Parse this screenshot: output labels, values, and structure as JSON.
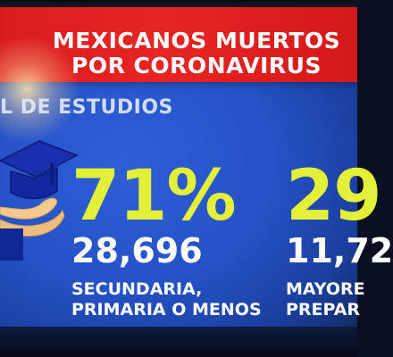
{
  "banner": {
    "line1": "MEXICANOS MUERTOS",
    "line2": "POR CORONAVIRUS",
    "color": "#e32020"
  },
  "section": {
    "label": "L DE ESTUDIOS"
  },
  "icons": {
    "education": "graduation-cap-on-hand-icon"
  },
  "stats": [
    {
      "percent": "71%",
      "count": "28,696",
      "desc_line1": "SECUNDARIA,",
      "desc_line2": "PRIMARIA O MENOS"
    },
    {
      "percent": "29",
      "count": "11,72",
      "desc_line1": "MAYORE",
      "desc_line2": "PREPAR"
    }
  ],
  "colors": {
    "background": "#2552c6",
    "percent": "#e3f03a",
    "text": "#ffffff"
  }
}
